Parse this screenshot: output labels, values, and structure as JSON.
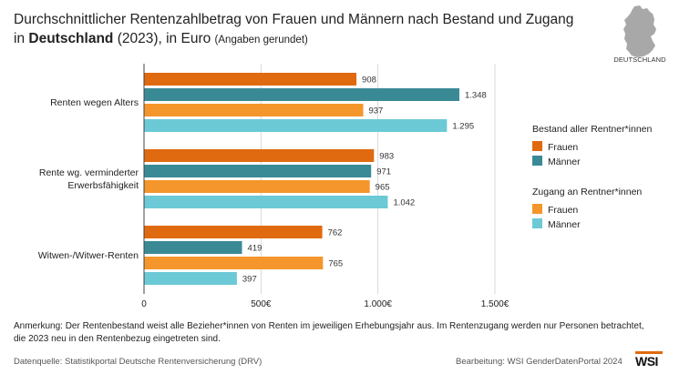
{
  "header": {
    "title_line1": "Durchschnittlicher Rentenzahlbetrag von Frauen und Männern nach Bestand und Zugang",
    "title_line2_prefix": "in ",
    "title_line2_bold": "Deutschland",
    "title_line2_suffix": " (2023), in Euro ",
    "title_line2_small": "(Angaben gerundet)"
  },
  "map": {
    "icon": "germany-map-icon",
    "label": "DEUTSCHLAND"
  },
  "chart_data": {
    "type": "bar",
    "orientation": "horizontal",
    "categories": [
      "Renten wegen Alters",
      "Rente wg. verminderter Erwerbsfähigkeit",
      "Witwen-/Witwer-Renten"
    ],
    "category_labels": [
      [
        "Renten wegen Alters"
      ],
      [
        "Rente wg. verminderter",
        "Erwerbsfähigkeit"
      ],
      [
        "Witwen-/Witwer-Renten"
      ]
    ],
    "series": [
      {
        "group": "Bestand aller Rentner*innen",
        "name": "Frauen",
        "color": "#e06a10",
        "values": [
          908,
          983,
          762
        ],
        "labels": [
          "908",
          "983",
          "762"
        ]
      },
      {
        "group": "Bestand aller Rentner*innen",
        "name": "Männer",
        "color": "#3a8a96",
        "values": [
          1348,
          971,
          419
        ],
        "labels": [
          "1.348",
          "971",
          "419"
        ]
      },
      {
        "group": "Zugang an Rentner*innen",
        "name": "Frauen",
        "color": "#f4962b",
        "values": [
          937,
          965,
          765
        ],
        "labels": [
          "937",
          "965",
          "765"
        ]
      },
      {
        "group": "Zugang an Rentner*innen",
        "name": "Männer",
        "color": "#6cc9d6",
        "values": [
          1295,
          1042,
          397
        ],
        "labels": [
          "1.295",
          "1.042",
          "397"
        ]
      }
    ],
    "xlim": [
      0,
      1500
    ],
    "ticks": [
      0,
      500,
      1000,
      1500
    ],
    "tick_labels": [
      "0",
      "500€",
      "1.000€",
      "1.500€"
    ],
    "grid": true,
    "legend_position": "right"
  },
  "legend": {
    "group1_title": "Bestand aller Rentner*innen",
    "group1_items": [
      "Frauen",
      "Männer"
    ],
    "group2_title": "Zugang an Rentner*innen",
    "group2_items": [
      "Frauen",
      "Männer"
    ]
  },
  "note": {
    "line1": "Anmerkung: Der Rentenbestand weist alle Bezieher*innen von Renten im jeweiligen Erhebungsjahr aus. Im Rentenzugang werden nur Personen betrachtet,",
    "line2": "die 2023 neu in den Rentenbezug eingetreten sind."
  },
  "footer": {
    "source": "Datenquelle: Statistikportal Deutsche Rentenversicherung (DRV)",
    "credit": "Bearbeitung: WSI GenderDatenPortal 2024",
    "logo": "WSI"
  }
}
